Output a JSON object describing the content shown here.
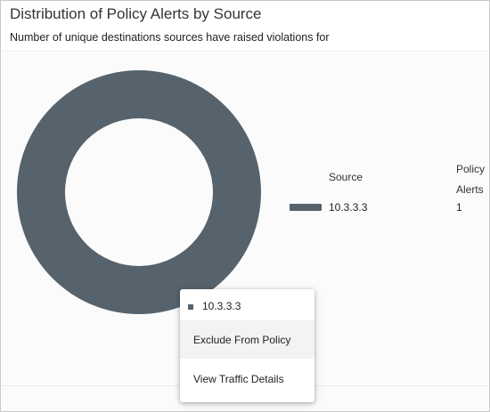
{
  "header": {
    "title": "Distribution of Policy Alerts by Source",
    "subtitle": "Number of unique destinations sources have raised violations for"
  },
  "chart_data": {
    "type": "pie",
    "donut": true,
    "slices": [
      {
        "label": "10.3.3.3",
        "value": 1,
        "color": "#56636d"
      }
    ]
  },
  "legend": {
    "col_source": "Source",
    "col_alerts": "Policy Alerts",
    "rows": [
      {
        "source": "10.3.3.3",
        "alerts": "1",
        "color": "#56636d"
      }
    ]
  },
  "context_menu": {
    "header_label": "10.3.3.3",
    "items": [
      {
        "label": "Exclude From Policy"
      },
      {
        "label": "View Traffic Details"
      }
    ]
  },
  "colors": {
    "series": "#56636d",
    "menu_hover": "#f3f3f3"
  }
}
